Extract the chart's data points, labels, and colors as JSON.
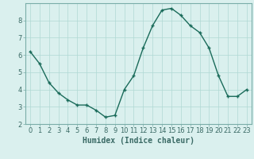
{
  "x": [
    0,
    1,
    2,
    3,
    4,
    5,
    6,
    7,
    8,
    9,
    10,
    11,
    12,
    13,
    14,
    15,
    16,
    17,
    18,
    19,
    20,
    21,
    22,
    23
  ],
  "y": [
    6.2,
    5.5,
    4.4,
    3.8,
    3.4,
    3.1,
    3.1,
    2.8,
    2.4,
    2.5,
    4.0,
    4.8,
    6.4,
    7.7,
    8.6,
    8.7,
    8.3,
    7.7,
    7.3,
    6.4,
    4.8,
    3.6,
    3.6,
    4.0
  ],
  "line_color": "#1a6b5a",
  "marker": "+",
  "marker_size": 3,
  "marker_linewidth": 1.0,
  "line_width": 1.0,
  "bg_color": "#daf0ee",
  "grid_color": "#b0d8d4",
  "xlabel": "Humidex (Indice chaleur)",
  "xlabel_fontsize": 7,
  "tick_fontsize": 6,
  "ylim": [
    2,
    9
  ],
  "yticks": [
    2,
    3,
    4,
    5,
    6,
    7,
    8
  ],
  "xticks": [
    0,
    1,
    2,
    3,
    4,
    5,
    6,
    7,
    8,
    9,
    10,
    11,
    12,
    13,
    14,
    15,
    16,
    17,
    18,
    19,
    20,
    21,
    22,
    23
  ],
  "spine_color": "#7aada8",
  "tick_color": "#3a6a65"
}
